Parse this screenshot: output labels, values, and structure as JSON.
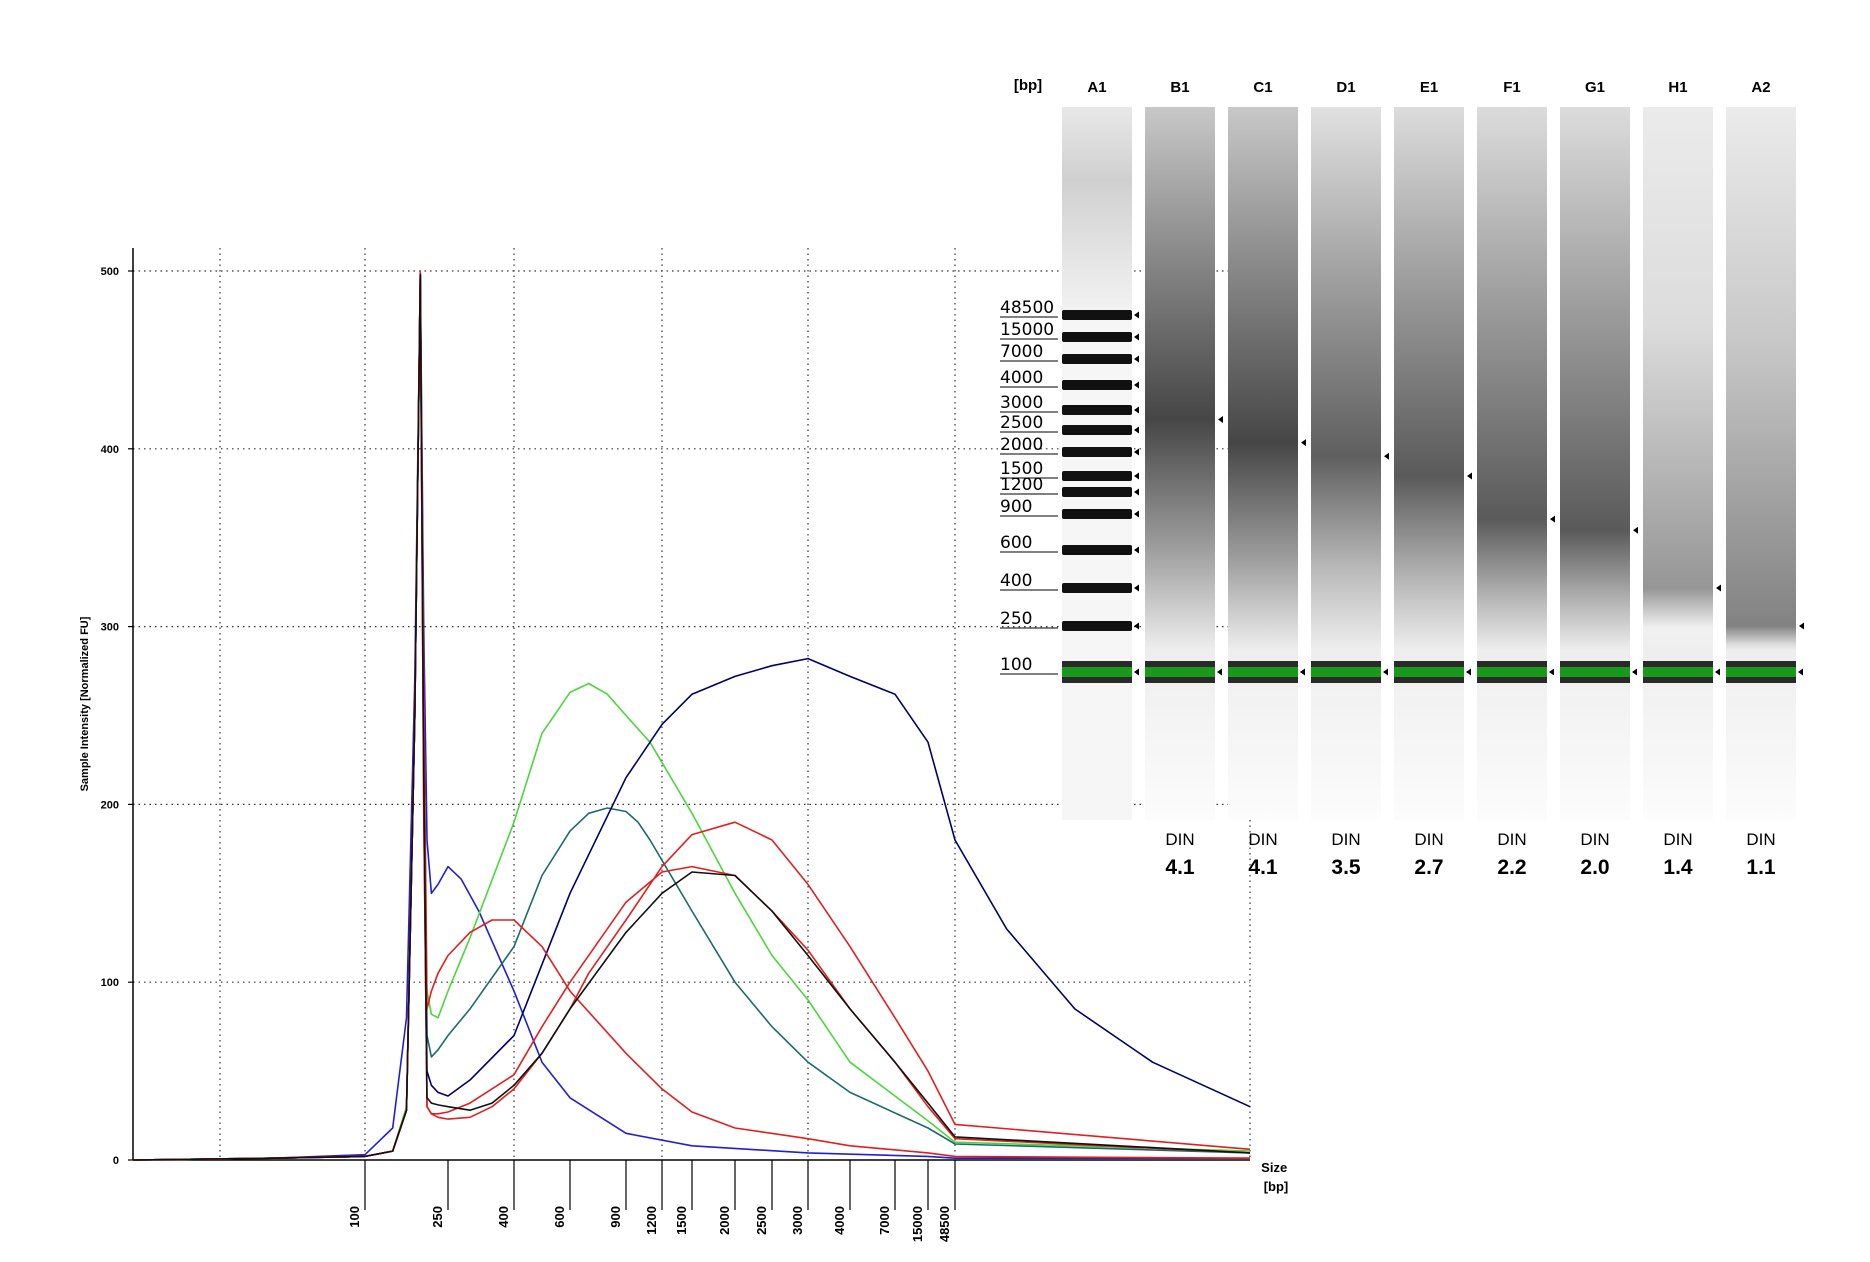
{
  "chart_data": [
    {
      "type": "line",
      "title": "",
      "xlabel": "Size [bp]",
      "ylabel": "Sample Intensity [Normalized FU]",
      "ylim": [
        0,
        500
      ],
      "yticks": [
        0,
        100,
        200,
        300,
        400,
        500
      ],
      "xticks": [
        "100",
        "250",
        "400",
        "600",
        "900",
        "1200",
        "1500",
        "2000",
        "2500",
        "3000",
        "4000",
        "7000",
        "15000",
        "48500"
      ],
      "x_major_gridlines": [
        "100",
        "400",
        "1200",
        "3000",
        "48500"
      ],
      "grid": true,
      "x_scale": "ladder",
      "series": [
        {
          "color": "#1f1fd6",
          "x": [
            0,
            60,
            100,
            150,
            175,
            190,
            200,
            206,
            212,
            220,
            232,
            250,
            280,
            320,
            400,
            500,
            600,
            900,
            1500,
            3000,
            15000,
            48500,
            200000
          ],
          "y": [
            0,
            1,
            3,
            18,
            80,
            270,
            498,
            300,
            180,
            150,
            155,
            165,
            158,
            140,
            95,
            55,
            35,
            15,
            8,
            4,
            2,
            1,
            1
          ]
        },
        {
          "color": "#4cd63c",
          "x": [
            0,
            60,
            100,
            150,
            175,
            190,
            200,
            206,
            212,
            220,
            232,
            250,
            300,
            400,
            500,
            600,
            700,
            800,
            900,
            1100,
            1500,
            2000,
            2500,
            3000,
            4000,
            15000,
            48500,
            200000
          ],
          "y": [
            0,
            1,
            2,
            5,
            30,
            250,
            497,
            260,
            95,
            82,
            80,
            95,
            125,
            190,
            240,
            263,
            268,
            262,
            250,
            235,
            195,
            150,
            115,
            90,
            55,
            22,
            10,
            5
          ]
        },
        {
          "color": "#1a6b6b",
          "x": [
            0,
            60,
            100,
            150,
            175,
            190,
            200,
            206,
            212,
            220,
            232,
            250,
            300,
            400,
            500,
            600,
            700,
            800,
            900,
            1000,
            1100,
            1500,
            2000,
            2500,
            3000,
            4000,
            15000,
            48500,
            200000
          ],
          "y": [
            0,
            1,
            2,
            5,
            28,
            250,
            497,
            250,
            70,
            58,
            62,
            70,
            85,
            120,
            160,
            185,
            195,
            198,
            196,
            190,
            180,
            140,
            100,
            75,
            55,
            38,
            18,
            9,
            4
          ]
        },
        {
          "color": "#00006e",
          "x": [
            0,
            60,
            100,
            150,
            175,
            190,
            200,
            206,
            212,
            220,
            232,
            250,
            300,
            400,
            500,
            600,
            900,
            1200,
            1500,
            2000,
            2500,
            3000,
            4000,
            7000,
            15000,
            48500,
            75000,
            110000,
            150000,
            200000
          ],
          "y": [
            0,
            1,
            2,
            5,
            28,
            250,
            498,
            230,
            50,
            42,
            38,
            36,
            45,
            70,
            110,
            150,
            215,
            245,
            262,
            272,
            278,
            282,
            272,
            262,
            235,
            180,
            130,
            85,
            55,
            30
          ]
        },
        {
          "color": "#e02020",
          "x": [
            0,
            60,
            100,
            150,
            175,
            190,
            200,
            206,
            212,
            220,
            232,
            250,
            300,
            350,
            400,
            500,
            600,
            900,
            1200,
            1500,
            2000,
            3000,
            4000,
            15000,
            48500,
            200000
          ],
          "y": [
            0,
            1,
            2,
            5,
            28,
            250,
            500,
            260,
            85,
            95,
            105,
            115,
            128,
            135,
            135,
            120,
            95,
            60,
            40,
            27,
            18,
            12,
            8,
            4,
            2,
            1
          ]
        },
        {
          "color": "#e02020",
          "x": [
            0,
            60,
            100,
            150,
            175,
            190,
            200,
            206,
            212,
            220,
            232,
            250,
            300,
            350,
            400,
            500,
            600,
            700,
            900,
            1200,
            1500,
            2000,
            2500,
            3000,
            4000,
            7000,
            15000,
            48500,
            200000
          ],
          "y": [
            0,
            1,
            2,
            5,
            28,
            250,
            499,
            200,
            30,
            26,
            24,
            23,
            24,
            30,
            40,
            60,
            85,
            105,
            135,
            165,
            183,
            190,
            180,
            155,
            120,
            80,
            50,
            20,
            6
          ]
        },
        {
          "color": "#e02020",
          "x": [
            0,
            60,
            100,
            150,
            175,
            190,
            200,
            206,
            212,
            220,
            232,
            250,
            300,
            400,
            500,
            600,
            900,
            1200,
            1500,
            2000,
            2500,
            3000,
            4000,
            7000,
            15000,
            48500,
            200000
          ],
          "y": [
            0,
            1,
            2,
            5,
            28,
            250,
            497,
            200,
            30,
            26,
            26,
            27,
            32,
            48,
            75,
            100,
            145,
            162,
            165,
            160,
            140,
            118,
            85,
            55,
            30,
            12,
            4
          ]
        },
        {
          "color": "#111111",
          "x": [
            0,
            60,
            100,
            150,
            175,
            190,
            200,
            206,
            212,
            220,
            232,
            250,
            300,
            350,
            400,
            500,
            600,
            900,
            1200,
            1500,
            2000,
            2500,
            3000,
            4000,
            7000,
            15000,
            48500,
            200000
          ],
          "y": [
            0,
            1,
            2,
            5,
            28,
            250,
            498,
            220,
            35,
            32,
            31,
            30,
            28,
            32,
            42,
            60,
            85,
            128,
            150,
            162,
            160,
            140,
            115,
            85,
            55,
            32,
            13,
            4
          ]
        }
      ]
    },
    {
      "type": "gel",
      "ladder_header": "[bp]",
      "ladder_labels": [
        "48500",
        "15000",
        "7000",
        "4000",
        "3000",
        "2500",
        "2000",
        "1500",
        "1200",
        "900",
        "600",
        "400",
        "250",
        "100"
      ],
      "lanes": [
        {
          "id": "A1",
          "type": "ladder"
        },
        {
          "id": "B1",
          "din_label": "DIN",
          "din": "4.1",
          "peak_bp": 2750
        },
        {
          "id": "C1",
          "din_label": "DIN",
          "din": "4.1",
          "peak_bp": 2200
        },
        {
          "id": "D1",
          "din_label": "DIN",
          "din": "3.5",
          "peak_bp": 1900
        },
        {
          "id": "E1",
          "din_label": "DIN",
          "din": "2.7",
          "peak_bp": 1500
        },
        {
          "id": "F1",
          "din_label": "DIN",
          "din": "2.2",
          "peak_bp": 850
        },
        {
          "id": "G1",
          "din_label": "DIN",
          "din": "2.0",
          "peak_bp": 750
        },
        {
          "id": "H1",
          "din_label": "DIN",
          "din": "1.4",
          "peak_bp": 400
        },
        {
          "id": "A2",
          "din_label": "DIN",
          "din": "1.1",
          "peak_bp": 250
        }
      ],
      "marker_color": "#1a9a1a"
    }
  ]
}
